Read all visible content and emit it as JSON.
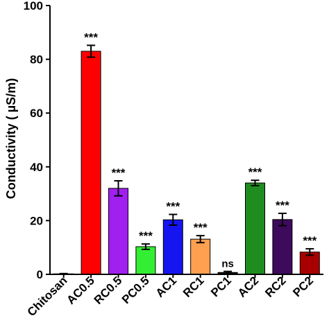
{
  "chart_data": {
    "type": "bar",
    "title": "",
    "xlabel": "",
    "ylabel": "Conductivity ( µS/m)",
    "ylim": [
      0,
      100
    ],
    "yticks": [
      0,
      20,
      40,
      60,
      80,
      100
    ],
    "grid": false,
    "categories": [
      "Chitosan",
      "AC0.5",
      "RC0.5",
      "PC0.5",
      "AC1",
      "RC1",
      "PC1",
      "AC2",
      "RC2",
      "PC2"
    ],
    "values": [
      0.2,
      83,
      32,
      10.3,
      20.3,
      13.1,
      0.7,
      34,
      20.4,
      8.3
    ],
    "errors": [
      0.1,
      2.2,
      2.8,
      1.0,
      2.0,
      1.3,
      0.4,
      1.0,
      2.3,
      1.2
    ],
    "significance": [
      "",
      "***",
      "***",
      "***",
      "***",
      "***",
      "ns",
      "***",
      "***",
      "***"
    ],
    "colors": [
      "#000000",
      "#ff0000",
      "#a020f0",
      "#33ee33",
      "#1515f0",
      "#ffa050",
      "#000000",
      "#1f8c1f",
      "#3d0a5c",
      "#a80000"
    ]
  }
}
